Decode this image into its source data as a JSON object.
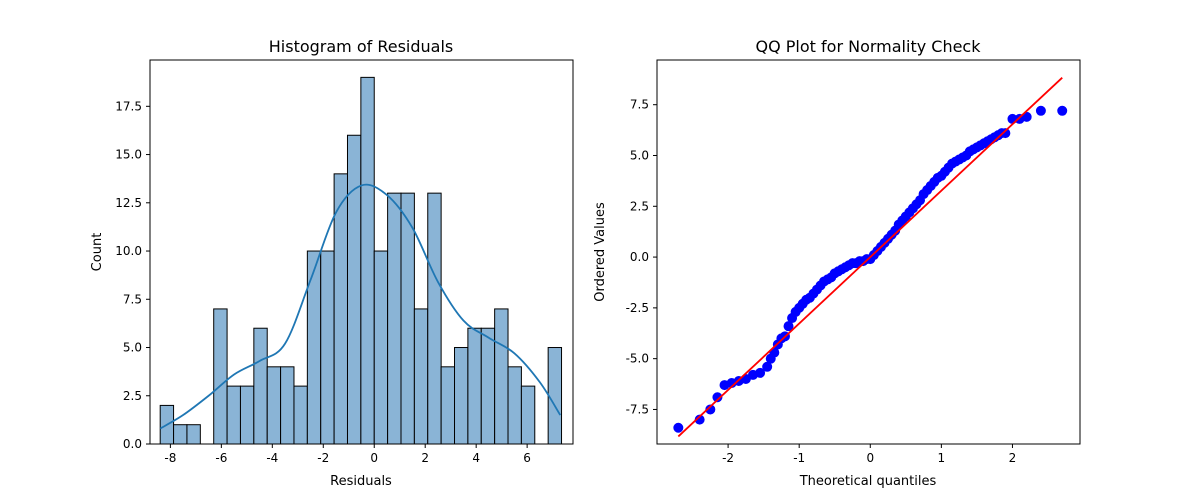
{
  "chart_data": [
    {
      "type": "bar",
      "title": "Histogram of Residuals",
      "xlabel": "Residuals",
      "ylabel": "Count",
      "xlim": [
        -8.8,
        7.8
      ],
      "ylim": [
        0,
        19.9
      ],
      "xticks": [
        -8,
        -6,
        -4,
        -2,
        0,
        2,
        4,
        6
      ],
      "yticks": [
        0.0,
        2.5,
        5.0,
        7.5,
        10.0,
        12.5,
        15.0,
        17.5
      ],
      "bin_edges": [
        -8.4,
        -7.875,
        -7.35,
        -6.825,
        -6.3,
        -5.775,
        -5.25,
        -4.725,
        -4.2,
        -3.675,
        -3.15,
        -2.625,
        -2.1,
        -1.575,
        -1.05,
        -0.525,
        0.0,
        0.525,
        1.05,
        1.575,
        2.1,
        2.625,
        3.15,
        3.675,
        4.2,
        4.725,
        5.25,
        5.775,
        6.3,
        6.825,
        7.35
      ],
      "values": [
        2,
        1,
        1,
        0,
        7,
        3,
        3,
        6,
        4,
        4,
        3,
        10,
        10,
        14,
        16,
        19,
        10,
        13,
        13,
        7,
        13,
        4,
        5,
        6,
        6,
        7,
        4,
        3,
        0,
        5
      ],
      "kde": {
        "x": [
          -8.4,
          -7.5,
          -6.5,
          -5.5,
          -4.5,
          -3.5,
          -2.5,
          -1.5,
          -0.5,
          0.5,
          1.5,
          2.5,
          3.5,
          4.5,
          5.5,
          6.5,
          7.3
        ],
        "y": [
          0.8,
          1.5,
          2.5,
          3.6,
          4.3,
          5.2,
          8.5,
          12.0,
          13.4,
          12.9,
          11.2,
          8.4,
          6.4,
          5.5,
          4.7,
          3.2,
          1.5
        ]
      },
      "colors": {
        "bar_fill": "#8ab4d6",
        "bar_edge": "#000000",
        "kde_line": "#1f77b4"
      },
      "grid": false
    },
    {
      "type": "scatter",
      "title": "QQ Plot for Normality Check",
      "xlabel": "Theoretical quantiles",
      "ylabel": "Ordered Values",
      "xlim": [
        -3.0,
        2.95
      ],
      "ylim": [
        -9.2,
        9.7
      ],
      "xticks": [
        -2,
        -1,
        0,
        1,
        2
      ],
      "yticks": [
        -7.5,
        -5.0,
        -2.5,
        0.0,
        2.5,
        5.0,
        7.5
      ],
      "points": {
        "x": [
          -2.7,
          -2.4,
          -2.25,
          -2.15,
          -2.05,
          -1.95,
          -1.85,
          -1.75,
          -1.65,
          -1.55,
          -1.45,
          -1.4,
          -1.35,
          -1.3,
          -1.25,
          -1.2,
          -1.15,
          -1.1,
          -1.05,
          -1.0,
          -0.95,
          -0.9,
          -0.85,
          -0.8,
          -0.75,
          -0.7,
          -0.65,
          -0.6,
          -0.55,
          -0.5,
          -0.45,
          -0.4,
          -0.35,
          -0.3,
          -0.25,
          -0.2,
          -0.15,
          -0.1,
          -0.05,
          0.0,
          0.05,
          0.1,
          0.15,
          0.2,
          0.25,
          0.3,
          0.35,
          0.4,
          0.45,
          0.5,
          0.55,
          0.6,
          0.65,
          0.7,
          0.75,
          0.8,
          0.85,
          0.9,
          0.95,
          1.0,
          1.05,
          1.1,
          1.15,
          1.2,
          1.25,
          1.3,
          1.35,
          1.4,
          1.45,
          1.5,
          1.55,
          1.6,
          1.65,
          1.7,
          1.75,
          1.8,
          1.85,
          1.9,
          2.0,
          2.1,
          2.2,
          2.4,
          2.7
        ],
        "y": [
          -8.4,
          -8.0,
          -7.5,
          -6.9,
          -6.3,
          -6.2,
          -6.1,
          -6.0,
          -5.8,
          -5.7,
          -5.4,
          -5.0,
          -4.7,
          -4.3,
          -4.0,
          -3.9,
          -3.4,
          -3.0,
          -2.7,
          -2.5,
          -2.3,
          -2.1,
          -2.0,
          -1.8,
          -1.6,
          -1.4,
          -1.2,
          -1.1,
          -1.0,
          -0.8,
          -0.7,
          -0.6,
          -0.5,
          -0.4,
          -0.3,
          -0.3,
          -0.2,
          -0.2,
          -0.1,
          -0.1,
          0.1,
          0.3,
          0.5,
          0.7,
          0.9,
          1.1,
          1.3,
          1.6,
          1.8,
          2.0,
          2.2,
          2.4,
          2.6,
          2.8,
          3.1,
          3.3,
          3.5,
          3.7,
          3.9,
          4.0,
          4.2,
          4.4,
          4.6,
          4.7,
          4.8,
          4.9,
          5.0,
          5.2,
          5.3,
          5.4,
          5.5,
          5.6,
          5.7,
          5.8,
          5.9,
          6.0,
          6.1,
          6.1,
          6.8,
          6.8,
          6.9,
          7.2,
          7.2
        ]
      },
      "fit_line": {
        "slope": 3.27,
        "intercept": 0.0,
        "x_range": [
          -2.7,
          2.7
        ]
      },
      "colors": {
        "points": "#0000ff",
        "fit_line": "#ff0000"
      },
      "grid": false
    }
  ]
}
